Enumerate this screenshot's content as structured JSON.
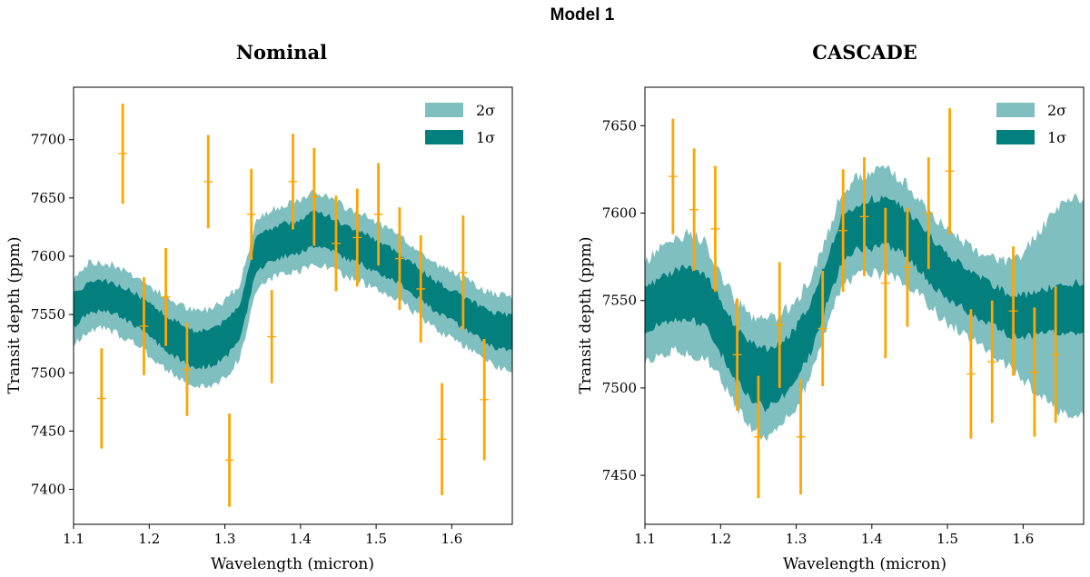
{
  "figure_title": "Model 1",
  "colors": {
    "band_1sigma": "#037f7e",
    "band_2sigma": "#80bfbf",
    "data_points": "#ffa500",
    "axis": "#000000"
  },
  "chart_data": [
    {
      "type": "area",
      "title": "Nominal",
      "xlabel": "Wavelength (micron)",
      "ylabel": "Transit depth (ppm)",
      "xlim": [
        1.1,
        1.68
      ],
      "ylim": [
        7370,
        7745
      ],
      "xticks": [
        1.1,
        1.2,
        1.3,
        1.4,
        1.5,
        1.6
      ],
      "yticks": [
        7400,
        7450,
        7500,
        7550,
        7600,
        7650,
        7700
      ],
      "legend": {
        "position": "top-right",
        "entries": [
          "2σ",
          "1σ"
        ]
      },
      "band": {
        "x": [
          1.1,
          1.12,
          1.14,
          1.16,
          1.18,
          1.2,
          1.22,
          1.24,
          1.26,
          1.28,
          1.3,
          1.32,
          1.33,
          1.34,
          1.36,
          1.38,
          1.4,
          1.42,
          1.44,
          1.46,
          1.48,
          1.5,
          1.52,
          1.54,
          1.56,
          1.58,
          1.6,
          1.62,
          1.64,
          1.66,
          1.68
        ],
        "median": [
          7553,
          7565,
          7566,
          7562,
          7555,
          7545,
          7535,
          7527,
          7520,
          7522,
          7528,
          7545,
          7570,
          7600,
          7610,
          7614,
          7617,
          7625,
          7620,
          7612,
          7608,
          7600,
          7594,
          7585,
          7575,
          7565,
          7558,
          7550,
          7542,
          7536,
          7534
        ],
        "sigma1_half": [
          14,
          13,
          13,
          13,
          14,
          14,
          15,
          16,
          16,
          16,
          16,
          15,
          15,
          14,
          14,
          14,
          14,
          15,
          14,
          14,
          14,
          14,
          13,
          13,
          13,
          13,
          13,
          14,
          14,
          15,
          15
        ],
        "sigma2_half": [
          30,
          29,
          28,
          29,
          29,
          30,
          31,
          32,
          33,
          33,
          33,
          32,
          31,
          30,
          29,
          30,
          30,
          31,
          30,
          30,
          29,
          29,
          28,
          28,
          28,
          28,
          29,
          29,
          30,
          31,
          31
        ]
      },
      "points": {
        "x": [
          1.137,
          1.165,
          1.193,
          1.222,
          1.25,
          1.278,
          1.306,
          1.335,
          1.362,
          1.39,
          1.418,
          1.447,
          1.475,
          1.503,
          1.531,
          1.559,
          1.587,
          1.615,
          1.643
        ],
        "y": [
          7478,
          7688,
          7540,
          7565,
          7503,
          7664,
          7425,
          7636,
          7531,
          7664,
          7651,
          7611,
          7616,
          7636,
          7598,
          7572,
          7443,
          7586,
          7477
        ],
        "err": [
          43,
          43,
          42,
          42,
          40,
          40,
          40,
          39,
          40,
          41,
          42,
          41,
          42,
          44,
          44,
          46,
          48,
          49,
          52
        ]
      }
    },
    {
      "type": "area",
      "title": "CASCADE",
      "xlabel": "Wavelength (micron)",
      "ylabel": "Transit depth (ppm)",
      "xlim": [
        1.1,
        1.68
      ],
      "ylim": [
        7422,
        7672
      ],
      "xticks": [
        1.1,
        1.2,
        1.3,
        1.4,
        1.5,
        1.6
      ],
      "yticks": [
        7450,
        7500,
        7550,
        7600,
        7650
      ],
      "legend": {
        "position": "top-right",
        "entries": [
          "2σ",
          "1σ"
        ]
      },
      "band": {
        "x": [
          1.1,
          1.12,
          1.14,
          1.16,
          1.18,
          1.2,
          1.22,
          1.24,
          1.26,
          1.28,
          1.3,
          1.32,
          1.34,
          1.36,
          1.38,
          1.4,
          1.42,
          1.44,
          1.46,
          1.48,
          1.5,
          1.52,
          1.54,
          1.56,
          1.58,
          1.6,
          1.62,
          1.64,
          1.66,
          1.68
        ],
        "median": [
          7544,
          7550,
          7553,
          7554,
          7550,
          7535,
          7520,
          7510,
          7505,
          7510,
          7520,
          7535,
          7560,
          7585,
          7592,
          7594,
          7595,
          7590,
          7582,
          7572,
          7563,
          7558,
          7552,
          7547,
          7542,
          7541,
          7543,
          7545,
          7546,
          7546
        ],
        "sigma1_half": [
          13,
          13,
          14,
          15,
          15,
          15,
          15,
          16,
          17,
          16,
          15,
          14,
          13,
          13,
          13,
          14,
          14,
          13,
          13,
          13,
          13,
          12,
          12,
          12,
          12,
          12,
          12,
          13,
          14,
          14
        ],
        "sigma2_half": [
          28,
          30,
          32,
          35,
          33,
          30,
          30,
          32,
          34,
          32,
          30,
          28,
          26,
          27,
          28,
          29,
          30,
          29,
          28,
          27,
          27,
          26,
          26,
          27,
          30,
          36,
          46,
          56,
          62,
          62
        ]
      },
      "points": {
        "x": [
          1.137,
          1.165,
          1.193,
          1.222,
          1.25,
          1.278,
          1.306,
          1.335,
          1.362,
          1.39,
          1.418,
          1.447,
          1.475,
          1.503,
          1.531,
          1.559,
          1.587,
          1.615,
          1.643
        ],
        "y": [
          7621,
          7602,
          7591,
          7519,
          7472,
          7536,
          7472,
          7534,
          7590,
          7598,
          7560,
          7569,
          7600,
          7624,
          7508,
          7515,
          7544,
          7509,
          7519
        ],
        "err": [
          33,
          35,
          36,
          32,
          35,
          36,
          33,
          33,
          35,
          34,
          43,
          34,
          32,
          36,
          37,
          35,
          37,
          37,
          39
        ]
      }
    }
  ]
}
